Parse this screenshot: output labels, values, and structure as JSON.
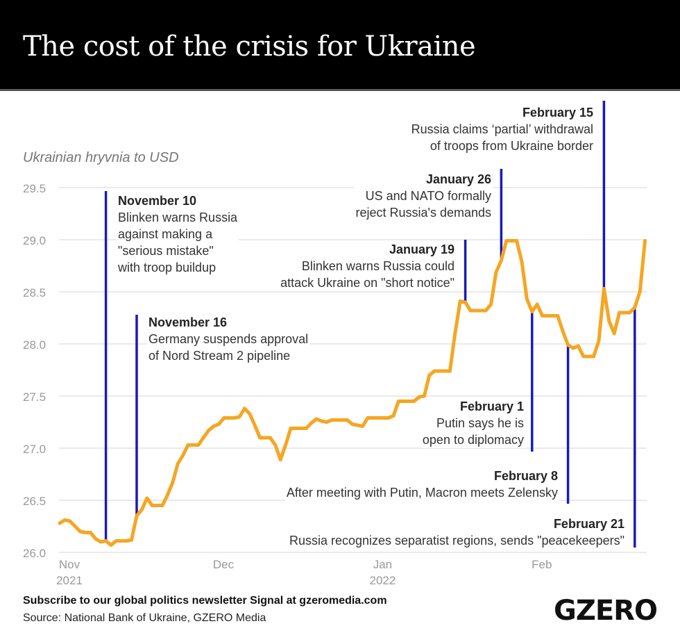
{
  "title": "The cost of the crisis for Ukraine",
  "footer": {
    "subscribe": "Subscribe to our global politics newsletter Signal at gzeromedia.com",
    "source": "Source: National Bank of Ukraine, GZERO Media",
    "logo": "GZERO"
  },
  "chart_data": {
    "type": "line",
    "title": "The cost of the crisis for Ukraine",
    "ylabel": "Ukrainian hryvnia to USD",
    "xlabel": "",
    "ylim": [
      26.0,
      29.5
    ],
    "yticks": [
      "26.0",
      "26.5",
      "27.0",
      "27.5",
      "28.0",
      "28.5",
      "29.0",
      "29.5"
    ],
    "xticks": [
      {
        "date": "2021-11-01",
        "label": "Nov",
        "sublabel": "2021"
      },
      {
        "date": "2021-12-01",
        "label": "Dec",
        "sublabel": ""
      },
      {
        "date": "2022-01-01",
        "label": "Jan",
        "sublabel": "2022"
      },
      {
        "date": "2022-02-01",
        "label": "Feb",
        "sublabel": ""
      }
    ],
    "grid": "horizontal",
    "colors": {
      "line": "#F5A623",
      "event": "#1A1AB8",
      "grid": "#e4e4e4"
    },
    "series": [
      {
        "points": [
          [
            "2021-11-01",
            26.28
          ],
          [
            "2021-11-02",
            26.31
          ],
          [
            "2021-11-03",
            26.3
          ],
          [
            "2021-11-04",
            26.25
          ],
          [
            "2021-11-05",
            26.2
          ],
          [
            "2021-11-06",
            26.19
          ],
          [
            "2021-11-07",
            26.19
          ],
          [
            "2021-11-08",
            26.13
          ],
          [
            "2021-11-09",
            26.1
          ],
          [
            "2021-11-10",
            26.11
          ],
          [
            "2021-11-11",
            26.07
          ],
          [
            "2021-11-12",
            26.11
          ],
          [
            "2021-11-13",
            26.11
          ],
          [
            "2021-11-14",
            26.11
          ],
          [
            "2021-11-15",
            26.12
          ],
          [
            "2021-11-16",
            26.35
          ],
          [
            "2021-11-17",
            26.41
          ],
          [
            "2021-11-18",
            26.52
          ],
          [
            "2021-11-19",
            26.45
          ],
          [
            "2021-11-20",
            26.45
          ],
          [
            "2021-11-21",
            26.45
          ],
          [
            "2021-11-22",
            26.55
          ],
          [
            "2021-11-23",
            26.67
          ],
          [
            "2021-11-24",
            26.85
          ],
          [
            "2021-11-25",
            26.93
          ],
          [
            "2021-11-26",
            27.03
          ],
          [
            "2021-11-27",
            27.03
          ],
          [
            "2021-11-28",
            27.03
          ],
          [
            "2021-11-29",
            27.1
          ],
          [
            "2021-11-30",
            27.17
          ],
          [
            "2021-12-01",
            27.21
          ],
          [
            "2021-12-02",
            27.23
          ],
          [
            "2021-12-03",
            27.29
          ],
          [
            "2021-12-04",
            27.29
          ],
          [
            "2021-12-05",
            27.29
          ],
          [
            "2021-12-06",
            27.3
          ],
          [
            "2021-12-07",
            27.38
          ],
          [
            "2021-12-08",
            27.33
          ],
          [
            "2021-12-09",
            27.22
          ],
          [
            "2021-12-10",
            27.1
          ],
          [
            "2021-12-11",
            27.1
          ],
          [
            "2021-12-12",
            27.1
          ],
          [
            "2021-12-13",
            27.03
          ],
          [
            "2021-12-14",
            26.89
          ],
          [
            "2021-12-15",
            27.03
          ],
          [
            "2021-12-16",
            27.19
          ],
          [
            "2021-12-17",
            27.19
          ],
          [
            "2021-12-18",
            27.19
          ],
          [
            "2021-12-19",
            27.19
          ],
          [
            "2021-12-20",
            27.24
          ],
          [
            "2021-12-21",
            27.28
          ],
          [
            "2021-12-22",
            27.26
          ],
          [
            "2021-12-23",
            27.25
          ],
          [
            "2021-12-24",
            27.27
          ],
          [
            "2021-12-25",
            27.27
          ],
          [
            "2021-12-26",
            27.27
          ],
          [
            "2021-12-27",
            27.27
          ],
          [
            "2021-12-28",
            27.23
          ],
          [
            "2021-12-29",
            27.22
          ],
          [
            "2021-12-30",
            27.21
          ],
          [
            "2021-12-31",
            27.29
          ],
          [
            "2022-01-01",
            27.29
          ],
          [
            "2022-01-02",
            27.29
          ],
          [
            "2022-01-03",
            27.29
          ],
          [
            "2022-01-04",
            27.29
          ],
          [
            "2022-01-05",
            27.31
          ],
          [
            "2022-01-06",
            27.45
          ],
          [
            "2022-01-07",
            27.45
          ],
          [
            "2022-01-08",
            27.45
          ],
          [
            "2022-01-09",
            27.45
          ],
          [
            "2022-01-10",
            27.49
          ],
          [
            "2022-01-11",
            27.5
          ],
          [
            "2022-01-12",
            27.7
          ],
          [
            "2022-01-13",
            27.74
          ],
          [
            "2022-01-14",
            27.74
          ],
          [
            "2022-01-15",
            27.74
          ],
          [
            "2022-01-16",
            27.74
          ],
          [
            "2022-01-17",
            28.1
          ],
          [
            "2022-01-18",
            28.41
          ],
          [
            "2022-01-19",
            28.4
          ],
          [
            "2022-01-20",
            28.32
          ],
          [
            "2022-01-21",
            28.32
          ],
          [
            "2022-01-22",
            28.32
          ],
          [
            "2022-01-23",
            28.32
          ],
          [
            "2022-01-24",
            28.38
          ],
          [
            "2022-01-25",
            28.69
          ],
          [
            "2022-01-26",
            28.8
          ],
          [
            "2022-01-27",
            28.99
          ],
          [
            "2022-01-28",
            28.99
          ],
          [
            "2022-01-29",
            28.99
          ],
          [
            "2022-01-30",
            28.79
          ],
          [
            "2022-01-31",
            28.43
          ],
          [
            "2022-02-01",
            28.31
          ],
          [
            "2022-02-02",
            28.38
          ],
          [
            "2022-02-03",
            28.27
          ],
          [
            "2022-02-04",
            28.27
          ],
          [
            "2022-02-05",
            28.27
          ],
          [
            "2022-02-06",
            28.27
          ],
          [
            "2022-02-07",
            28.12
          ],
          [
            "2022-02-08",
            27.99
          ],
          [
            "2022-02-09",
            27.96
          ],
          [
            "2022-02-10",
            27.98
          ],
          [
            "2022-02-11",
            27.88
          ],
          [
            "2022-02-12",
            27.88
          ],
          [
            "2022-02-13",
            27.88
          ],
          [
            "2022-02-14",
            28.03
          ],
          [
            "2022-02-15",
            28.53
          ],
          [
            "2022-02-16",
            28.22
          ],
          [
            "2022-02-17",
            28.1
          ],
          [
            "2022-02-18",
            28.3
          ],
          [
            "2022-02-19",
            28.3
          ],
          [
            "2022-02-20",
            28.3
          ],
          [
            "2022-02-21",
            28.35
          ],
          [
            "2022-02-22",
            28.5
          ],
          [
            "2022-02-23",
            28.99
          ]
        ]
      }
    ],
    "annotations": [
      {
        "date": "2021-11-10",
        "title": "November 10",
        "lines": [
          "Blinken warns Russia",
          "against making a",
          "\"serious mistake\"",
          "with troop buildup"
        ]
      },
      {
        "date": "2021-11-16",
        "title": "November 16",
        "lines": [
          "Germany suspends approval",
          "of Nord Stream 2 pipeline"
        ]
      },
      {
        "date": "2022-01-19",
        "title": "January 19",
        "lines": [
          "Blinken warns Russia could",
          "attack Ukraine on \"short notice\""
        ]
      },
      {
        "date": "2022-01-26",
        "title": "January 26",
        "lines": [
          "US and NATO formally",
          "reject Russia's demands"
        ]
      },
      {
        "date": "2022-02-01",
        "title": "February 1",
        "lines": [
          "Putin says he is",
          "open to diplomacy"
        ]
      },
      {
        "date": "2022-02-08",
        "title": "February 8",
        "lines": [
          "After meeting with Putin, Macron meets Zelensky"
        ]
      },
      {
        "date": "2022-02-15",
        "title": "February 15",
        "lines": [
          "Russia claims ‘partial’ withdrawal",
          "of troops from Ukraine border"
        ]
      },
      {
        "date": "2022-02-21",
        "title": "February 21",
        "lines": [
          "Russia recognizes separatist regions, sends \"peacekeepers\""
        ]
      }
    ]
  }
}
